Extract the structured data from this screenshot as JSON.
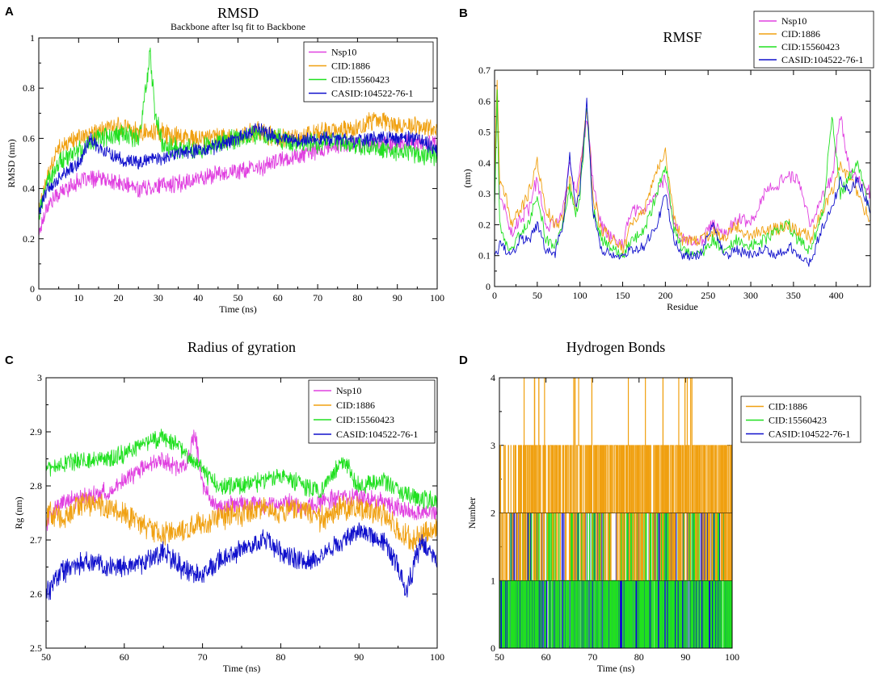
{
  "figure": {
    "colors": {
      "Nsp10": "#e040e0",
      "CID:1886": "#f0a010",
      "CID:15560423": "#20e020",
      "CASID:104522-76-1": "#1010cc"
    }
  },
  "chart_data": [
    {
      "panel": "A",
      "type": "line",
      "title": "RMSD",
      "subtitle": "Backbone after lsq fit to Backbone",
      "xlabel": "Time (ns)",
      "ylabel": "RMSD (nm)",
      "xlim": [
        0,
        100
      ],
      "ylim": [
        0,
        1
      ],
      "xticks": [
        0,
        10,
        20,
        30,
        40,
        50,
        60,
        70,
        80,
        90,
        100
      ],
      "yticks": [
        0,
        0.2,
        0.4,
        0.6,
        0.8,
        1
      ],
      "ytick_labels": [
        "0",
        "0.2",
        "0.4",
        "0.6",
        "0.8",
        "1"
      ],
      "legend": [
        "Nsp10",
        "CID:1886",
        "CID:15560423",
        "CASID:104522-76-1"
      ],
      "legend_position": "top-right",
      "series": [
        {
          "name": "Nsp10",
          "x": [
            0,
            2,
            5,
            10,
            15,
            20,
            25,
            30,
            35,
            40,
            45,
            50,
            55,
            60,
            65,
            70,
            75,
            80,
            85,
            90,
            95,
            100
          ],
          "y": [
            0.22,
            0.33,
            0.38,
            0.43,
            0.44,
            0.42,
            0.4,
            0.41,
            0.42,
            0.44,
            0.46,
            0.47,
            0.48,
            0.51,
            0.53,
            0.55,
            0.57,
            0.58,
            0.58,
            0.58,
            0.58,
            0.58
          ],
          "noise": 0.03
        },
        {
          "name": "CID:1886",
          "x": [
            0,
            2,
            5,
            10,
            15,
            20,
            25,
            30,
            35,
            40,
            45,
            50,
            55,
            60,
            65,
            70,
            75,
            80,
            85,
            90,
            95,
            100
          ],
          "y": [
            0.3,
            0.45,
            0.55,
            0.6,
            0.63,
            0.64,
            0.62,
            0.63,
            0.6,
            0.6,
            0.6,
            0.6,
            0.63,
            0.6,
            0.6,
            0.62,
            0.63,
            0.65,
            0.67,
            0.66,
            0.65,
            0.63
          ],
          "noise": 0.035
        },
        {
          "name": "CID:15560423",
          "x": [
            0,
            2,
            5,
            10,
            15,
            20,
            25,
            27,
            28,
            29,
            31,
            35,
            40,
            45,
            50,
            55,
            60,
            65,
            70,
            75,
            80,
            85,
            90,
            95,
            100
          ],
          "y": [
            0.3,
            0.42,
            0.5,
            0.55,
            0.6,
            0.62,
            0.6,
            0.8,
            0.95,
            0.72,
            0.58,
            0.56,
            0.56,
            0.58,
            0.6,
            0.62,
            0.6,
            0.58,
            0.58,
            0.59,
            0.57,
            0.56,
            0.55,
            0.54,
            0.53
          ],
          "noise": 0.035
        },
        {
          "name": "CASID:104522-76-1",
          "x": [
            0,
            2,
            5,
            10,
            13,
            15,
            20,
            25,
            30,
            35,
            40,
            45,
            50,
            55,
            60,
            65,
            70,
            75,
            80,
            85,
            90,
            95,
            100
          ],
          "y": [
            0.3,
            0.4,
            0.44,
            0.5,
            0.6,
            0.56,
            0.52,
            0.5,
            0.52,
            0.54,
            0.55,
            0.57,
            0.6,
            0.64,
            0.6,
            0.59,
            0.6,
            0.6,
            0.59,
            0.6,
            0.6,
            0.6,
            0.55
          ],
          "noise": 0.025
        }
      ]
    },
    {
      "panel": "B",
      "type": "line",
      "title": "RMSF",
      "xlabel": "Residue",
      "ylabel": "(nm)",
      "xlim": [
        0,
        440
      ],
      "ylim": [
        0,
        0.7
      ],
      "xticks": [
        0,
        50,
        100,
        150,
        200,
        250,
        300,
        350,
        400
      ],
      "yticks": [
        0,
        0.1,
        0.2,
        0.3,
        0.4,
        0.5,
        0.6,
        0.7
      ],
      "ytick_labels": [
        "0",
        "0.1",
        "0.2",
        "0.3",
        "0.4",
        "0.5",
        "0.6",
        "0.7"
      ],
      "legend": [
        "Nsp10",
        "CID:1886",
        "CID:15560423",
        "CASID:104522-76-1"
      ],
      "legend_position": "top-right",
      "series": [
        {
          "name": "Nsp10",
          "x": [
            0,
            3,
            6,
            12,
            20,
            30,
            40,
            50,
            60,
            70,
            80,
            88,
            95,
            100,
            108,
            115,
            125,
            140,
            150,
            160,
            175,
            190,
            200,
            210,
            220,
            240,
            255,
            270,
            285,
            300,
            315,
            330,
            345,
            355,
            370,
            385,
            395,
            405,
            415,
            425,
            440
          ],
          "y": [
            0.3,
            0.6,
            0.3,
            0.25,
            0.18,
            0.22,
            0.25,
            0.35,
            0.2,
            0.2,
            0.25,
            0.4,
            0.3,
            0.38,
            0.55,
            0.35,
            0.2,
            0.15,
            0.13,
            0.24,
            0.25,
            0.3,
            0.35,
            0.2,
            0.15,
            0.14,
            0.2,
            0.17,
            0.22,
            0.2,
            0.3,
            0.33,
            0.35,
            0.35,
            0.2,
            0.3,
            0.35,
            0.55,
            0.38,
            0.35,
            0.3
          ],
          "noise": 0.02
        },
        {
          "name": "CID:1886",
          "x": [
            0,
            3,
            6,
            12,
            20,
            30,
            40,
            50,
            60,
            70,
            80,
            88,
            95,
            100,
            108,
            115,
            125,
            140,
            150,
            160,
            175,
            190,
            200,
            210,
            220,
            240,
            255,
            270,
            285,
            300,
            315,
            330,
            345,
            355,
            370,
            385,
            395,
            405,
            415,
            425,
            440
          ],
          "y": [
            0.35,
            0.68,
            0.35,
            0.3,
            0.2,
            0.25,
            0.3,
            0.4,
            0.25,
            0.2,
            0.22,
            0.35,
            0.25,
            0.35,
            0.58,
            0.3,
            0.18,
            0.15,
            0.12,
            0.2,
            0.25,
            0.38,
            0.44,
            0.22,
            0.15,
            0.15,
            0.18,
            0.16,
            0.2,
            0.16,
            0.18,
            0.18,
            0.2,
            0.18,
            0.16,
            0.25,
            0.3,
            0.4,
            0.35,
            0.3,
            0.22
          ],
          "noise": 0.02
        },
        {
          "name": "CID:15560423",
          "x": [
            0,
            3,
            6,
            12,
            20,
            30,
            40,
            50,
            60,
            70,
            80,
            88,
            95,
            100,
            108,
            115,
            125,
            140,
            150,
            160,
            175,
            190,
            200,
            210,
            220,
            240,
            255,
            270,
            285,
            300,
            315,
            330,
            345,
            355,
            370,
            385,
            395,
            405,
            415,
            425,
            440
          ],
          "y": [
            0.25,
            0.62,
            0.2,
            0.15,
            0.12,
            0.18,
            0.2,
            0.3,
            0.15,
            0.12,
            0.2,
            0.32,
            0.22,
            0.3,
            0.58,
            0.25,
            0.15,
            0.12,
            0.1,
            0.15,
            0.18,
            0.3,
            0.4,
            0.18,
            0.12,
            0.1,
            0.15,
            0.12,
            0.15,
            0.13,
            0.15,
            0.18,
            0.2,
            0.15,
            0.12,
            0.25,
            0.55,
            0.3,
            0.35,
            0.4,
            0.25
          ],
          "noise": 0.018
        },
        {
          "name": "CASID:104522-76-1",
          "x": [
            0,
            3,
            6,
            12,
            20,
            30,
            40,
            50,
            60,
            70,
            80,
            88,
            95,
            100,
            108,
            115,
            125,
            140,
            150,
            160,
            175,
            190,
            200,
            210,
            220,
            240,
            255,
            270,
            285,
            300,
            315,
            330,
            345,
            355,
            370,
            385,
            395,
            405,
            415,
            425,
            440
          ],
          "y": [
            0.1,
            0.1,
            0.15,
            0.12,
            0.1,
            0.15,
            0.15,
            0.2,
            0.12,
            0.1,
            0.2,
            0.42,
            0.25,
            0.32,
            0.6,
            0.25,
            0.12,
            0.1,
            0.1,
            0.12,
            0.13,
            0.2,
            0.3,
            0.15,
            0.1,
            0.1,
            0.2,
            0.1,
            0.12,
            0.1,
            0.12,
            0.1,
            0.13,
            0.1,
            0.08,
            0.2,
            0.25,
            0.35,
            0.3,
            0.35,
            0.25
          ],
          "noise": 0.015
        }
      ]
    },
    {
      "panel": "C",
      "type": "line",
      "title": "Radius of gyration",
      "xlabel": "Time (ns)",
      "ylabel": "Rg (nm)",
      "xlim": [
        50,
        100
      ],
      "ylim": [
        2.5,
        3
      ],
      "xticks": [
        50,
        60,
        70,
        80,
        90,
        100
      ],
      "yticks": [
        2.5,
        2.6,
        2.7,
        2.8,
        2.9,
        3
      ],
      "ytick_labels": [
        "2.5",
        "2.6",
        "2.7",
        "2.8",
        "2.9",
        "3"
      ],
      "legend": [
        "Nsp10",
        "CID:1886",
        "CID:15560423",
        "CASID:104522-76-1"
      ],
      "legend_position": "top-right",
      "series": [
        {
          "name": "Nsp10",
          "x": [
            50,
            52,
            55,
            58,
            60,
            63,
            65,
            67,
            68,
            69,
            70,
            72,
            75,
            78,
            80,
            83,
            85,
            88,
            90,
            93,
            95,
            97,
            100
          ],
          "y": [
            2.73,
            2.77,
            2.78,
            2.79,
            2.81,
            2.84,
            2.85,
            2.83,
            2.84,
            2.9,
            2.8,
            2.76,
            2.77,
            2.76,
            2.77,
            2.76,
            2.77,
            2.78,
            2.78,
            2.77,
            2.76,
            2.75,
            2.75
          ],
          "noise": 0.015
        },
        {
          "name": "CID:1886",
          "x": [
            50,
            52,
            55,
            58,
            60,
            63,
            65,
            68,
            70,
            72,
            75,
            78,
            80,
            83,
            85,
            88,
            90,
            93,
            95,
            97,
            100
          ],
          "y": [
            2.75,
            2.74,
            2.77,
            2.76,
            2.75,
            2.72,
            2.71,
            2.72,
            2.73,
            2.74,
            2.75,
            2.76,
            2.75,
            2.76,
            2.74,
            2.76,
            2.76,
            2.75,
            2.72,
            2.7,
            2.72
          ],
          "noise": 0.02
        },
        {
          "name": "CID:15560423",
          "x": [
            50,
            52,
            55,
            58,
            60,
            63,
            65,
            67,
            70,
            72,
            75,
            78,
            80,
            83,
            85,
            87,
            88,
            90,
            93,
            95,
            97,
            100
          ],
          "y": [
            2.83,
            2.84,
            2.85,
            2.85,
            2.86,
            2.88,
            2.89,
            2.87,
            2.83,
            2.8,
            2.8,
            2.81,
            2.82,
            2.8,
            2.79,
            2.83,
            2.85,
            2.8,
            2.81,
            2.79,
            2.78,
            2.77
          ],
          "noise": 0.015
        },
        {
          "name": "CASID:104522-76-1",
          "x": [
            50,
            52,
            55,
            58,
            60,
            63,
            65,
            68,
            70,
            72,
            75,
            78,
            80,
            83,
            85,
            88,
            90,
            93,
            95,
            96,
            97,
            98,
            100
          ],
          "y": [
            2.6,
            2.64,
            2.66,
            2.65,
            2.65,
            2.66,
            2.68,
            2.64,
            2.63,
            2.66,
            2.68,
            2.7,
            2.68,
            2.66,
            2.67,
            2.7,
            2.72,
            2.7,
            2.65,
            2.6,
            2.65,
            2.7,
            2.66
          ],
          "noise": 0.018
        }
      ]
    },
    {
      "panel": "D",
      "type": "line",
      "title": "Hydrogen Bonds",
      "xlabel": "Time (ns)",
      "ylabel": "Number",
      "xlim": [
        50,
        100
      ],
      "ylim": [
        0,
        4
      ],
      "xticks": [
        50,
        60,
        70,
        80,
        90,
        100
      ],
      "yticks": [
        0,
        1,
        2,
        3,
        4
      ],
      "ytick_labels": [
        "0",
        "1",
        "2",
        "3",
        "4"
      ],
      "legend": [
        "CID:1886",
        "CID:15560423",
        "CASID:104522-76-1"
      ],
      "legend_position": "right",
      "note": "Step-like hydrogen bond counts fluctuating between integer values; CID:1886 mostly 1-3 with occasional 4, CID:15560423 and CASID:104522-76-1 mostly 0-2.",
      "series": [
        {
          "name": "CID:1886",
          "levels": [
            1,
            2,
            3
          ],
          "peak": 4,
          "range": [
            50,
            100
          ]
        },
        {
          "name": "CID:15560423",
          "levels": [
            0,
            1,
            2
          ],
          "peak": 2,
          "range": [
            50,
            100
          ]
        },
        {
          "name": "CASID:104522-76-1",
          "levels": [
            0,
            1,
            2
          ],
          "peak": 3,
          "range": [
            50,
            100
          ]
        }
      ]
    }
  ]
}
